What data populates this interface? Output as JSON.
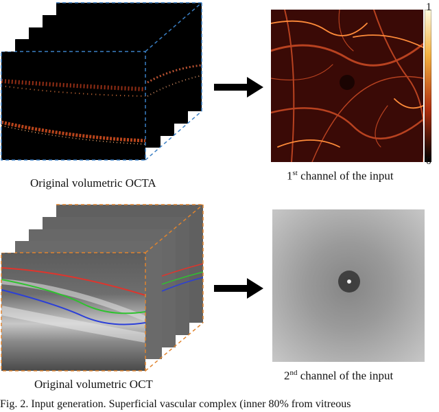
{
  "captions": {
    "octa_volume": "Original volumetric OCTA",
    "oct_volume": "Original volumetric OCT",
    "channel1_prefix": "1",
    "channel1_sup": "st",
    "channel1_suffix": " channel of the input",
    "channel2_prefix": "2",
    "channel2_sup": "nd",
    "channel2_suffix": " channel of the input"
  },
  "colorbar": {
    "max_label": "1",
    "min_label": "0"
  },
  "figure_caption": "Fig. 2. Input generation. Superficial vascular complex (inner 80% from vitreous",
  "colors": {
    "octa_box_edge": "#3a7fc4",
    "oct_box_edge": "#e0842e",
    "layer_red": "#e0342c",
    "layer_green": "#2fc22f",
    "layer_blue": "#2b3fd8"
  }
}
